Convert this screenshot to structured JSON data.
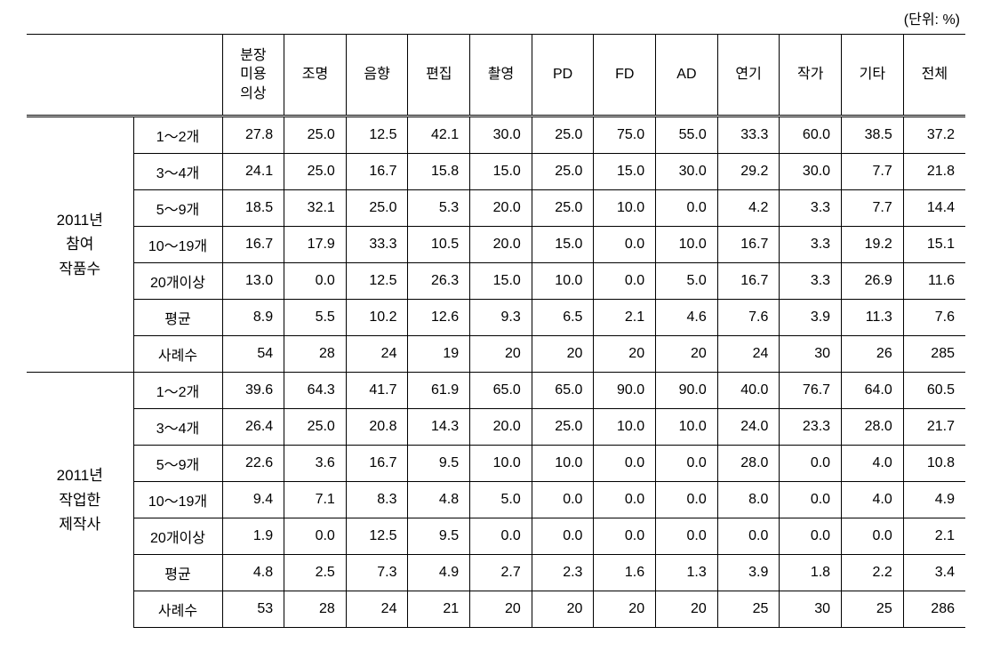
{
  "unit_label": "(단위: %)",
  "columns": [
    "분장\n미용\n의상",
    "조명",
    "음향",
    "편집",
    "촬영",
    "PD",
    "FD",
    "AD",
    "연기",
    "작가",
    "기타",
    "전체"
  ],
  "groups": [
    {
      "label_lines": [
        "2011년",
        "참여",
        "작품수"
      ],
      "rows": [
        {
          "label": "1～2개",
          "values": [
            "27.8",
            "25.0",
            "12.5",
            "42.1",
            "30.0",
            "25.0",
            "75.0",
            "55.0",
            "33.3",
            "60.0",
            "38.5",
            "37.2"
          ]
        },
        {
          "label": "3～4개",
          "values": [
            "24.1",
            "25.0",
            "16.7",
            "15.8",
            "15.0",
            "25.0",
            "15.0",
            "30.0",
            "29.2",
            "30.0",
            "7.7",
            "21.8"
          ]
        },
        {
          "label": "5～9개",
          "values": [
            "18.5",
            "32.1",
            "25.0",
            "5.3",
            "20.0",
            "25.0",
            "10.0",
            "0.0",
            "4.2",
            "3.3",
            "7.7",
            "14.4"
          ]
        },
        {
          "label": "10～19개",
          "values": [
            "16.7",
            "17.9",
            "33.3",
            "10.5",
            "20.0",
            "15.0",
            "0.0",
            "10.0",
            "16.7",
            "3.3",
            "19.2",
            "15.1"
          ]
        },
        {
          "label": "20개이상",
          "values": [
            "13.0",
            "0.0",
            "12.5",
            "26.3",
            "15.0",
            "10.0",
            "0.0",
            "5.0",
            "16.7",
            "3.3",
            "26.9",
            "11.6"
          ]
        },
        {
          "label": "평균",
          "values": [
            "8.9",
            "5.5",
            "10.2",
            "12.6",
            "9.3",
            "6.5",
            "2.1",
            "4.6",
            "7.6",
            "3.9",
            "11.3",
            "7.6"
          ]
        },
        {
          "label": "사례수",
          "values": [
            "54",
            "28",
            "24",
            "19",
            "20",
            "20",
            "20",
            "20",
            "24",
            "30",
            "26",
            "285"
          ]
        }
      ]
    },
    {
      "label_lines": [
        "2011년",
        "작업한",
        "제작사"
      ],
      "rows": [
        {
          "label": "1～2개",
          "values": [
            "39.6",
            "64.3",
            "41.7",
            "61.9",
            "65.0",
            "65.0",
            "90.0",
            "90.0",
            "40.0",
            "76.7",
            "64.0",
            "60.5"
          ]
        },
        {
          "label": "3～4개",
          "values": [
            "26.4",
            "25.0",
            "20.8",
            "14.3",
            "20.0",
            "25.0",
            "10.0",
            "10.0",
            "24.0",
            "23.3",
            "28.0",
            "21.7"
          ]
        },
        {
          "label": "5～9개",
          "values": [
            "22.6",
            "3.6",
            "16.7",
            "9.5",
            "10.0",
            "10.0",
            "0.0",
            "0.0",
            "28.0",
            "0.0",
            "4.0",
            "10.8"
          ]
        },
        {
          "label": "10～19개",
          "values": [
            "9.4",
            "7.1",
            "8.3",
            "4.8",
            "5.0",
            "0.0",
            "0.0",
            "0.0",
            "8.0",
            "0.0",
            "4.0",
            "4.9"
          ]
        },
        {
          "label": "20개이상",
          "values": [
            "1.9",
            "0.0",
            "12.5",
            "9.5",
            "0.0",
            "0.0",
            "0.0",
            "0.0",
            "0.0",
            "0.0",
            "0.0",
            "2.1"
          ]
        },
        {
          "label": "평균",
          "values": [
            "4.8",
            "2.5",
            "7.3",
            "4.9",
            "2.7",
            "2.3",
            "1.6",
            "1.3",
            "3.9",
            "1.8",
            "2.2",
            "3.4"
          ]
        },
        {
          "label": "사례수",
          "values": [
            "53",
            "28",
            "24",
            "21",
            "20",
            "20",
            "20",
            "20",
            "25",
            "30",
            "25",
            "286"
          ]
        }
      ]
    }
  ]
}
